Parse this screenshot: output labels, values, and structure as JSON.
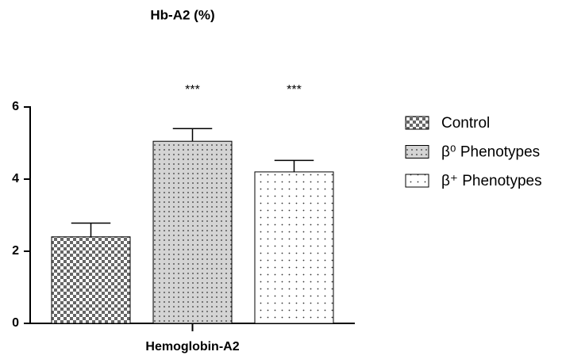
{
  "chart_data": {
    "type": "bar",
    "title": "Hb-A2 (%)",
    "categories": [
      "Hemoglobin-A2"
    ],
    "series": [
      {
        "name": "Control",
        "pattern": "checker",
        "values": [
          2.4
        ],
        "errors": [
          0.38
        ]
      },
      {
        "name": "β⁰ Phenotypes",
        "pattern": "dense-dots",
        "values": [
          5.05
        ],
        "errors": [
          0.35
        ],
        "annotation": "***"
      },
      {
        "name": "β⁺ Phenotypes",
        "pattern": "sparse-dots",
        "values": [
          4.2
        ],
        "errors": [
          0.32
        ],
        "annotation": "***"
      }
    ],
    "ylim": [
      0,
      6
    ],
    "yticks": [
      0,
      2,
      4,
      6
    ],
    "grid": false,
    "legend": "right"
  }
}
